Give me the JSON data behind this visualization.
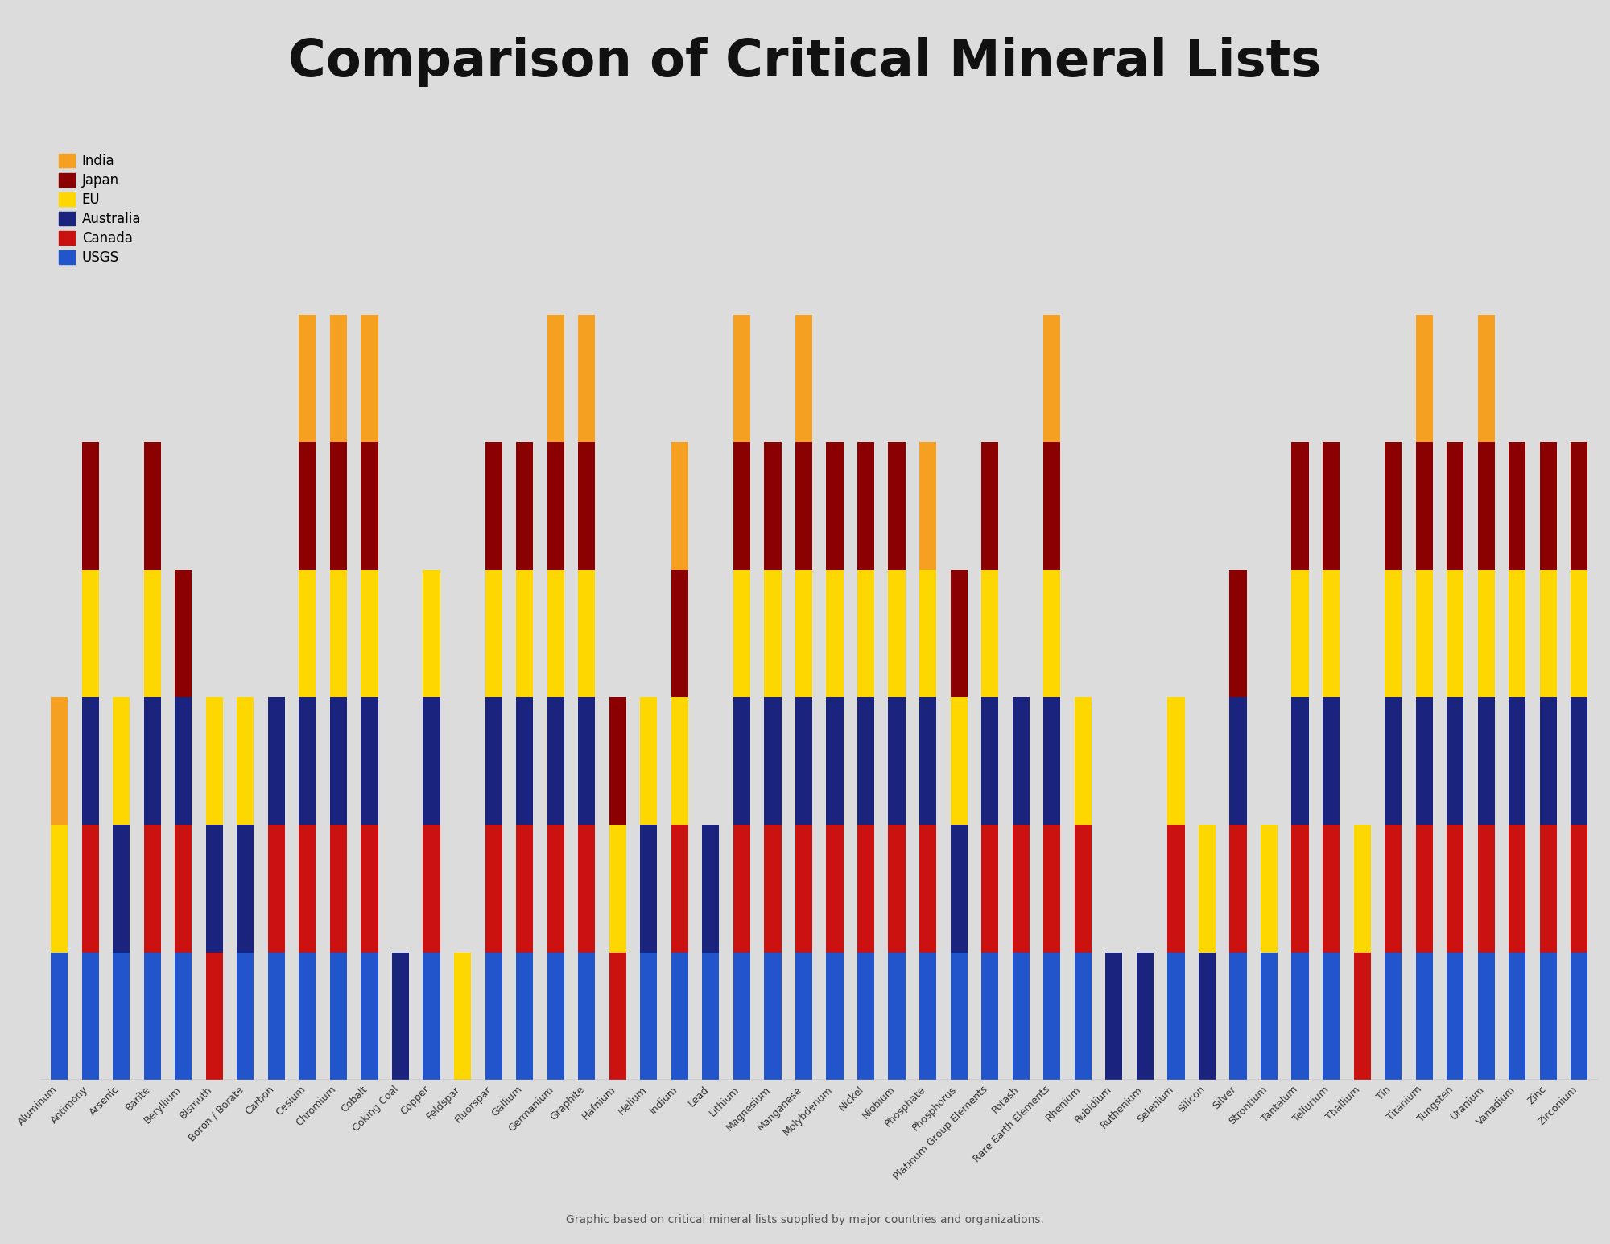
{
  "title": "Comparison of Critical Mineral Lists",
  "title_fontsize": 46,
  "subtitle": "Graphic based on critical mineral lists supplied by major countries and organizations.",
  "categories": [
    "India",
    "Japan",
    "EU",
    "Australia",
    "Canada",
    "USGS"
  ],
  "colors": {
    "India": "#F5A020",
    "Japan": "#8B0000",
    "EU": "#FFD700",
    "Australia": "#1A237E",
    "Canada": "#CC1111",
    "USGS": "#2255CC"
  },
  "minerals": [
    "Aluminum",
    "Antimony",
    "Arsenic",
    "Barite",
    "Beryllium",
    "Bismuth",
    "Boron / Borate",
    "Carbon",
    "Cesium",
    "Chromium",
    "Cobalt",
    "Coking Coal",
    "Copper",
    "Feldspar",
    "Fluorspar",
    "Gallium",
    "Germanium",
    "Graphite",
    "Hafnium",
    "Helium",
    "Indium",
    "Lead",
    "Lithium",
    "Magnesium",
    "Manganese",
    "Molybdenum",
    "Nickel",
    "Niobium",
    "Phosphate",
    "Phosphorus",
    "Platinum Group Elements",
    "Potash",
    "Rare Earth Elements",
    "Rhenium",
    "Rubidium",
    "Ruthenium",
    "Selenium",
    "Silicon",
    "Silver",
    "Strontium",
    "Tantalum",
    "Tellurium",
    "Thallium",
    "Tin",
    "Titanium",
    "Tungsten",
    "Uranium",
    "Vanadium",
    "Zinc",
    "Zirconium"
  ],
  "data": {
    "Aluminum": [
      1,
      0,
      1,
      0,
      0,
      1
    ],
    "Antimony": [
      0,
      1,
      1,
      1,
      1,
      1
    ],
    "Arsenic": [
      0,
      0,
      1,
      1,
      0,
      1
    ],
    "Barite": [
      0,
      1,
      1,
      1,
      1,
      1
    ],
    "Beryllium": [
      0,
      1,
      0,
      1,
      1,
      1
    ],
    "Bismuth": [
      0,
      0,
      1,
      1,
      1,
      0
    ],
    "Boron / Borate": [
      0,
      0,
      1,
      1,
      0,
      1
    ],
    "Carbon": [
      0,
      0,
      0,
      1,
      1,
      1
    ],
    "Cesium": [
      1,
      1,
      1,
      1,
      1,
      1
    ],
    "Chromium": [
      1,
      1,
      1,
      1,
      1,
      1
    ],
    "Cobalt": [
      1,
      1,
      1,
      1,
      1,
      1
    ],
    "Coking Coal": [
      0,
      0,
      0,
      1,
      0,
      0
    ],
    "Copper": [
      0,
      0,
      1,
      1,
      1,
      1
    ],
    "Feldspar": [
      0,
      0,
      1,
      0,
      0,
      0
    ],
    "Fluorspar": [
      0,
      1,
      1,
      1,
      1,
      1
    ],
    "Gallium": [
      0,
      1,
      1,
      1,
      1,
      1
    ],
    "Germanium": [
      1,
      1,
      1,
      1,
      1,
      1
    ],
    "Graphite": [
      1,
      1,
      1,
      1,
      1,
      1
    ],
    "Hafnium": [
      0,
      1,
      1,
      0,
      1,
      0
    ],
    "Helium": [
      0,
      0,
      1,
      1,
      0,
      1
    ],
    "Indium": [
      1,
      1,
      1,
      0,
      1,
      1
    ],
    "Lead": [
      0,
      0,
      0,
      1,
      0,
      1
    ],
    "Lithium": [
      1,
      1,
      1,
      1,
      1,
      1
    ],
    "Magnesium": [
      0,
      1,
      1,
      1,
      1,
      1
    ],
    "Manganese": [
      1,
      1,
      1,
      1,
      1,
      1
    ],
    "Molybdenum": [
      0,
      1,
      1,
      1,
      1,
      1
    ],
    "Nickel": [
      0,
      1,
      1,
      1,
      1,
      1
    ],
    "Niobium": [
      0,
      1,
      1,
      1,
      1,
      1
    ],
    "Phosphate": [
      1,
      0,
      1,
      1,
      1,
      1
    ],
    "Phosphorus": [
      0,
      1,
      1,
      1,
      0,
      1
    ],
    "Platinum Group Elements": [
      0,
      1,
      1,
      1,
      1,
      1
    ],
    "Potash": [
      0,
      0,
      0,
      1,
      1,
      1
    ],
    "Rare Earth Elements": [
      1,
      1,
      1,
      1,
      1,
      1
    ],
    "Rhenium": [
      0,
      0,
      1,
      0,
      1,
      1
    ],
    "Rubidium": [
      0,
      0,
      0,
      1,
      0,
      0
    ],
    "Ruthenium": [
      0,
      0,
      0,
      1,
      0,
      0
    ],
    "Selenium": [
      0,
      0,
      1,
      0,
      1,
      1
    ],
    "Silicon": [
      0,
      0,
      1,
      1,
      0,
      0
    ],
    "Silver": [
      0,
      1,
      0,
      1,
      1,
      1
    ],
    "Strontium": [
      0,
      0,
      1,
      0,
      0,
      1
    ],
    "Tantalum": [
      0,
      1,
      1,
      1,
      1,
      1
    ],
    "Tellurium": [
      0,
      1,
      1,
      1,
      1,
      1
    ],
    "Thallium": [
      0,
      0,
      1,
      0,
      1,
      0
    ],
    "Tin": [
      0,
      1,
      1,
      1,
      1,
      1
    ],
    "Titanium": [
      1,
      1,
      1,
      1,
      1,
      1
    ],
    "Tungsten": [
      0,
      1,
      1,
      1,
      1,
      1
    ],
    "Uranium": [
      1,
      1,
      1,
      1,
      1,
      1
    ],
    "Vanadium": [
      0,
      1,
      1,
      1,
      1,
      1
    ],
    "Zinc": [
      0,
      1,
      1,
      1,
      1,
      1
    ],
    "Zirconium": [
      0,
      1,
      1,
      1,
      1,
      1
    ]
  },
  "stack_order": [
    "USGS",
    "Canada",
    "Australia",
    "EU",
    "Japan",
    "India"
  ],
  "background_color": "#DCDCDC",
  "bar_width": 0.55
}
